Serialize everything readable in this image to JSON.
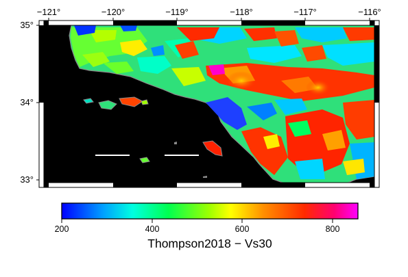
{
  "map": {
    "lon_labels": [
      "−121°",
      "−120°",
      "−119°",
      "−118°",
      "−117°",
      "−116°"
    ],
    "lat_labels": [
      "35°",
      "34°",
      "33°"
    ],
    "extent": {
      "lon_min": -121,
      "lon_max": -116,
      "lat_min": 33,
      "lat_max": 35
    },
    "ocean_color": "#000000",
    "frame_style": "checkered"
  },
  "colorbar": {
    "title": "Thompson2018 − Vs30",
    "tick_labels": [
      "200",
      "400",
      "600",
      "800"
    ],
    "range": [
      200,
      850
    ],
    "colormap": [
      "#0000ff",
      "#00c8ff",
      "#00ffc0",
      "#00ff40",
      "#a0ff00",
      "#ffff00",
      "#ffa000",
      "#ff4000",
      "#ff0060",
      "#ff00ff"
    ]
  }
}
